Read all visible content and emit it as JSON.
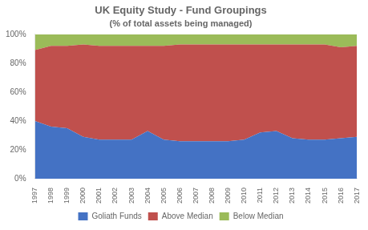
{
  "chart_data": {
    "type": "area",
    "title": "UK Equity Study - Fund Groupings",
    "subtitle": "(% of total assets being managed)",
    "x": [
      1997,
      1998,
      1999,
      2000,
      2001,
      2002,
      2003,
      2004,
      2005,
      2006,
      2007,
      2008,
      2009,
      2010,
      2011,
      2012,
      2013,
      2014,
      2015,
      2016,
      2017
    ],
    "series": [
      {
        "name": "Goliath Funds",
        "color": "#4472C4",
        "values": [
          0.4,
          0.36,
          0.35,
          0.29,
          0.27,
          0.27,
          0.27,
          0.33,
          0.27,
          0.26,
          0.26,
          0.26,
          0.26,
          0.27,
          0.32,
          0.33,
          0.28,
          0.27,
          0.27,
          0.28,
          0.29
        ]
      },
      {
        "name": "Above Median",
        "color": "#C0504D",
        "values": [
          0.49,
          0.56,
          0.57,
          0.64,
          0.65,
          0.65,
          0.65,
          0.59,
          0.65,
          0.67,
          0.67,
          0.67,
          0.67,
          0.66,
          0.61,
          0.6,
          0.65,
          0.66,
          0.66,
          0.63,
          0.63
        ]
      },
      {
        "name": "Below Median",
        "color": "#9BBB59",
        "values": [
          0.11,
          0.08,
          0.08,
          0.07,
          0.08,
          0.08,
          0.08,
          0.08,
          0.08,
          0.07,
          0.07,
          0.07,
          0.07,
          0.07,
          0.07,
          0.07,
          0.07,
          0.07,
          0.07,
          0.09,
          0.08
        ]
      }
    ],
    "stacked": true,
    "xlim": [
      1997,
      2017
    ],
    "xticks": [
      1997,
      1998,
      1999,
      2000,
      2001,
      2002,
      2003,
      2004,
      2005,
      2006,
      2007,
      2008,
      2009,
      2010,
      2011,
      2012,
      2013,
      2014,
      2015,
      2016,
      2017
    ],
    "ylim": [
      0,
      1
    ],
    "yticks": [
      {
        "value": 0,
        "label": "0%"
      },
      {
        "value": 0.2,
        "label": "20%"
      },
      {
        "value": 0.4,
        "label": "40%"
      },
      {
        "value": 0.6,
        "label": "60%"
      },
      {
        "value": 0.8,
        "label": "80%"
      },
      {
        "value": 1.0,
        "label": "100%"
      }
    ],
    "grid": false,
    "legend": "bottom"
  }
}
